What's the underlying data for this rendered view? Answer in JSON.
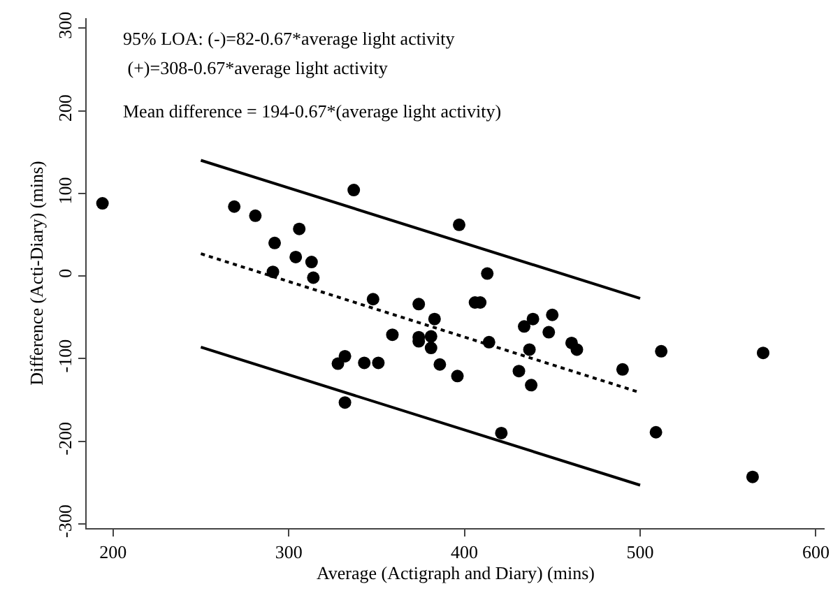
{
  "chart_data": {
    "type": "scatter",
    "xlabel": "Average (Actigraph and Diary) (mins)",
    "ylabel": "Difference (Acti-Diary) (mins)",
    "annotations": [
      "95% LOA: (-)=82-0.67*average light activity",
      " (+)=308-0.67*average light activity",
      "Mean difference = 194-0.67*(average light activity)"
    ],
    "xlim": [
      185,
      605
    ],
    "ylim": [
      -305,
      312
    ],
    "xticks": [
      200,
      300,
      400,
      500,
      600
    ],
    "yticks": [
      -300,
      -200,
      -100,
      0,
      100,
      200,
      300
    ],
    "series": [
      {
        "color": "#000000",
        "marker": "circle",
        "x": [
          194,
          269,
          281,
          306,
          292,
          304,
          313,
          291,
          314,
          337,
          348,
          328,
          332,
          343,
          351,
          332,
          359,
          374,
          374,
          374,
          381,
          381,
          383,
          386,
          396,
          397,
          413,
          406,
          409,
          414,
          431,
          438,
          434,
          439,
          437,
          448,
          450,
          421,
          461,
          464,
          490,
          512,
          509,
          570,
          564
        ],
        "values": [
          88,
          84,
          73,
          57,
          40,
          23,
          17,
          5,
          -2,
          104,
          -28,
          -106,
          -97,
          -105,
          -105,
          -153,
          -71,
          -34,
          -74,
          -79,
          -73,
          -87,
          -52,
          -107,
          -121,
          62,
          3,
          -32,
          -32,
          -80,
          -115,
          -132,
          -61,
          -52,
          -89,
          -68,
          -47,
          -190,
          -81,
          -89,
          -113,
          -91,
          -189,
          -93,
          -243
        ]
      },
      {
        "type": "line",
        "color": "#000000",
        "marker": "none",
        "line_style": "solid",
        "x": [
          250,
          500
        ],
        "values": [
          140,
          -27
        ]
      },
      {
        "type": "line",
        "color": "#000000",
        "marker": "none",
        "line_style": "dotted",
        "x": [
          250,
          500
        ],
        "values": [
          27,
          -141
        ]
      },
      {
        "type": "line",
        "color": "#000000",
        "marker": "none",
        "line_style": "solid",
        "x": [
          250,
          500
        ],
        "values": [
          -86,
          -253
        ]
      }
    ]
  }
}
